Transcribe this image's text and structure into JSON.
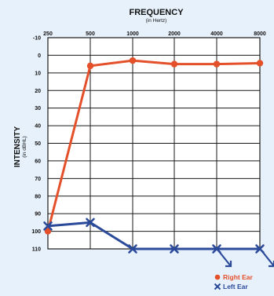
{
  "chart_data": {
    "type": "line",
    "title": "FREQUENCY",
    "subtitle": "(in Hertz)",
    "ylabel": "INTENSITY",
    "ylabel_sub": "(in dBHL)",
    "x_categories": [
      "250",
      "500",
      "1000",
      "2000",
      "4000",
      "8000"
    ],
    "y_ticks": [
      "-10",
      "0",
      "10",
      "20",
      "30",
      "40",
      "50",
      "60",
      "70",
      "80",
      "90",
      "100",
      "110"
    ],
    "ylim": [
      -10,
      110
    ],
    "y_inverted": true,
    "grid": true,
    "legend_position": "bottom-right",
    "series": [
      {
        "name": "Right Ear",
        "marker": "circle",
        "color": "#e4502a",
        "values": [
          100,
          6,
          3,
          5,
          5,
          4.5
        ]
      },
      {
        "name": "Left Ear",
        "marker": "x",
        "color": "#2b4a9a",
        "values": [
          97,
          95,
          110,
          110,
          110,
          110
        ],
        "no_response_arrows": [
          false,
          false,
          false,
          false,
          true,
          true
        ]
      }
    ]
  }
}
